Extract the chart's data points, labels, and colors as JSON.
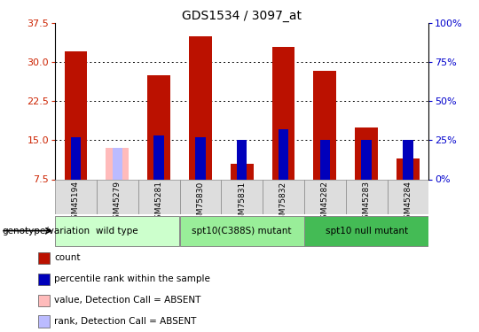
{
  "title": "GDS1534 / 3097_at",
  "samples": [
    "GSM45194",
    "GSM45279",
    "GSM45281",
    "GSM75830",
    "GSM75831",
    "GSM75832",
    "GSM45282",
    "GSM45283",
    "GSM45284"
  ],
  "count_values": [
    32.1,
    0.0,
    27.5,
    35.0,
    10.5,
    33.0,
    28.3,
    17.5,
    11.5
  ],
  "absent_count": [
    0.0,
    13.5,
    0.0,
    0.0,
    0.0,
    0.0,
    0.0,
    0.0,
    0.0
  ],
  "percentile_values": [
    27.0,
    0.0,
    28.0,
    27.0,
    25.0,
    32.0,
    25.0,
    25.0,
    25.0
  ],
  "absent_percentile": [
    0.0,
    20.0,
    0.0,
    0.0,
    0.0,
    0.0,
    0.0,
    0.0,
    0.0
  ],
  "ylim_left": [
    7.5,
    37.5
  ],
  "yticks_left": [
    7.5,
    15.0,
    22.5,
    30.0,
    37.5
  ],
  "yticks_right": [
    0,
    25,
    50,
    75,
    100
  ],
  "ylabel_left_color": "#cc2200",
  "ylabel_right_color": "#0000cc",
  "bar_width": 0.55,
  "count_color": "#bb1100",
  "percentile_color": "#0000bb",
  "absent_count_color": "#ffbbbb",
  "absent_percentile_color": "#bbbbff",
  "groups": [
    {
      "label": "wild type",
      "indices": [
        0,
        1,
        2
      ],
      "color": "#ccffcc"
    },
    {
      "label": "spt10(C388S) mutant",
      "indices": [
        3,
        4,
        5
      ],
      "color": "#99ee99"
    },
    {
      "label": "spt10 null mutant",
      "indices": [
        6,
        7,
        8
      ],
      "color": "#44bb55"
    }
  ],
  "legend_items": [
    {
      "label": "count",
      "color": "#bb1100"
    },
    {
      "label": "percentile rank within the sample",
      "color": "#0000bb"
    },
    {
      "label": "value, Detection Call = ABSENT",
      "color": "#ffbbbb"
    },
    {
      "label": "rank, Detection Call = ABSENT",
      "color": "#bbbbff"
    }
  ],
  "genotype_label": "genotype/variation",
  "background_color": "#ffffff",
  "grid_color": "#000000"
}
